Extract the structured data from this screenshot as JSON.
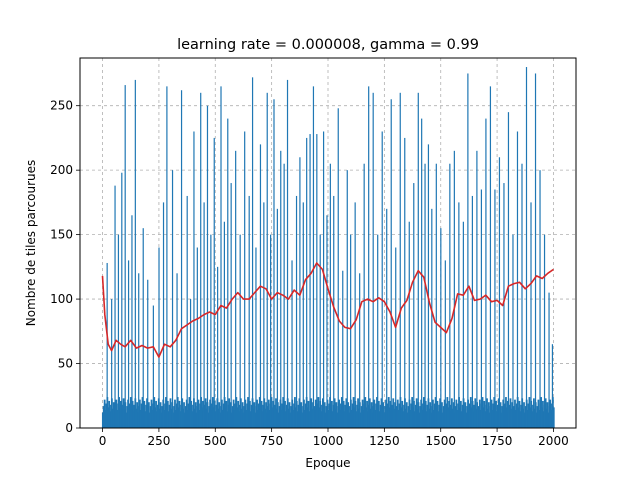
{
  "chart_data": {
    "type": "bar",
    "title": "learning rate = 0.000008, gamma = 0.99",
    "xlabel": "Epoque",
    "ylabel": "Nombre de tiles parcourues",
    "xlim": [
      -100,
      2100
    ],
    "ylim": [
      0,
      287
    ],
    "xticks": [
      0,
      250,
      500,
      750,
      1000,
      1250,
      1500,
      1750,
      2000
    ],
    "yticks": [
      0,
      50,
      100,
      150,
      200,
      250
    ],
    "grid": true,
    "bar_color": "#1f77b4",
    "line_color": "#d62728",
    "series": [
      {
        "kind": "bar",
        "description": "Episode values (tall spikes)",
        "x": [
          20,
          40,
          55,
          70,
          85,
          100,
          115,
          130,
          145,
          160,
          180,
          200,
          225,
          250,
          270,
          285,
          310,
          330,
          350,
          375,
          390,
          405,
          420,
          435,
          450,
          465,
          480,
          495,
          510,
          525,
          540,
          555,
          570,
          590,
          610,
          630,
          650,
          665,
          680,
          700,
          715,
          730,
          745,
          760,
          775,
          790,
          805,
          820,
          840,
          860,
          875,
          890,
          905,
          920,
          935,
          950,
          965,
          980,
          995,
          1010,
          1025,
          1045,
          1065,
          1085,
          1100,
          1120,
          1140,
          1160,
          1180,
          1200,
          1220,
          1240,
          1260,
          1280,
          1300,
          1320,
          1340,
          1360,
          1380,
          1400,
          1415,
          1430,
          1445,
          1460,
          1480,
          1500,
          1520,
          1540,
          1560,
          1580,
          1600,
          1620,
          1640,
          1660,
          1680,
          1700,
          1720,
          1740,
          1760,
          1780,
          1800,
          1820,
          1840,
          1860,
          1880,
          1900,
          1920,
          1940,
          1960,
          1980,
          1995
        ],
        "values": [
          128,
          100,
          188,
          150,
          198,
          266,
          130,
          165,
          270,
          120,
          155,
          115,
          95,
          140,
          175,
          265,
          200,
          120,
          262,
          180,
          100,
          230,
          140,
          260,
          175,
          250,
          150,
          225,
          125,
          265,
          160,
          240,
          190,
          215,
          150,
          230,
          180,
          272,
          140,
          220,
          175,
          260,
          150,
          255,
          170,
          215,
          205,
          270,
          130,
          180,
          210,
          175,
          225,
          228,
          265,
          228,
          150,
          230,
          165,
          205,
          180,
          248,
          122,
          200,
          150,
          175,
          120,
          205,
          265,
          260,
          150,
          230,
          170,
          255,
          140,
          260,
          225,
          160,
          190,
          260,
          240,
          205,
          220,
          170,
          205,
          155,
          130,
          205,
          215,
          175,
          160,
          275,
          180,
          215,
          185,
          240,
          265,
          185,
          210,
          190,
          245,
          150,
          230,
          205,
          280,
          175,
          275,
          200,
          150,
          105,
          65
        ]
      },
      {
        "kind": "line",
        "description": "Moving average",
        "x": [
          0,
          10,
          25,
          40,
          60,
          80,
          100,
          125,
          150,
          175,
          200,
          225,
          250,
          275,
          300,
          325,
          350,
          375,
          400,
          425,
          450,
          475,
          500,
          525,
          550,
          575,
          600,
          625,
          650,
          675,
          700,
          725,
          750,
          775,
          800,
          825,
          850,
          875,
          900,
          925,
          950,
          975,
          1000,
          1025,
          1050,
          1075,
          1100,
          1125,
          1150,
          1175,
          1200,
          1225,
          1250,
          1275,
          1300,
          1325,
          1350,
          1375,
          1400,
          1425,
          1450,
          1475,
          1500,
          1525,
          1550,
          1575,
          1600,
          1625,
          1650,
          1675,
          1700,
          1725,
          1750,
          1775,
          1800,
          1825,
          1850,
          1875,
          1900,
          1925,
          1950,
          1975,
          2000
        ],
        "values": [
          118,
          88,
          65,
          60,
          68,
          65,
          63,
          68,
          62,
          64,
          62,
          63,
          55,
          65,
          63,
          68,
          77,
          80,
          83,
          85,
          88,
          90,
          88,
          95,
          93,
          100,
          105,
          100,
          100,
          105,
          110,
          108,
          100,
          105,
          103,
          100,
          107,
          103,
          115,
          120,
          128,
          123,
          108,
          94,
          83,
          78,
          77,
          84,
          98,
          100,
          98,
          101,
          98,
          90,
          78,
          93,
          99,
          113,
          122,
          117,
          97,
          82,
          78,
          74,
          85,
          104,
          103,
          110,
          99,
          100,
          103,
          98,
          99,
          95,
          110,
          112,
          113,
          108,
          112,
          118,
          116,
          120,
          123
        ]
      }
    ]
  }
}
